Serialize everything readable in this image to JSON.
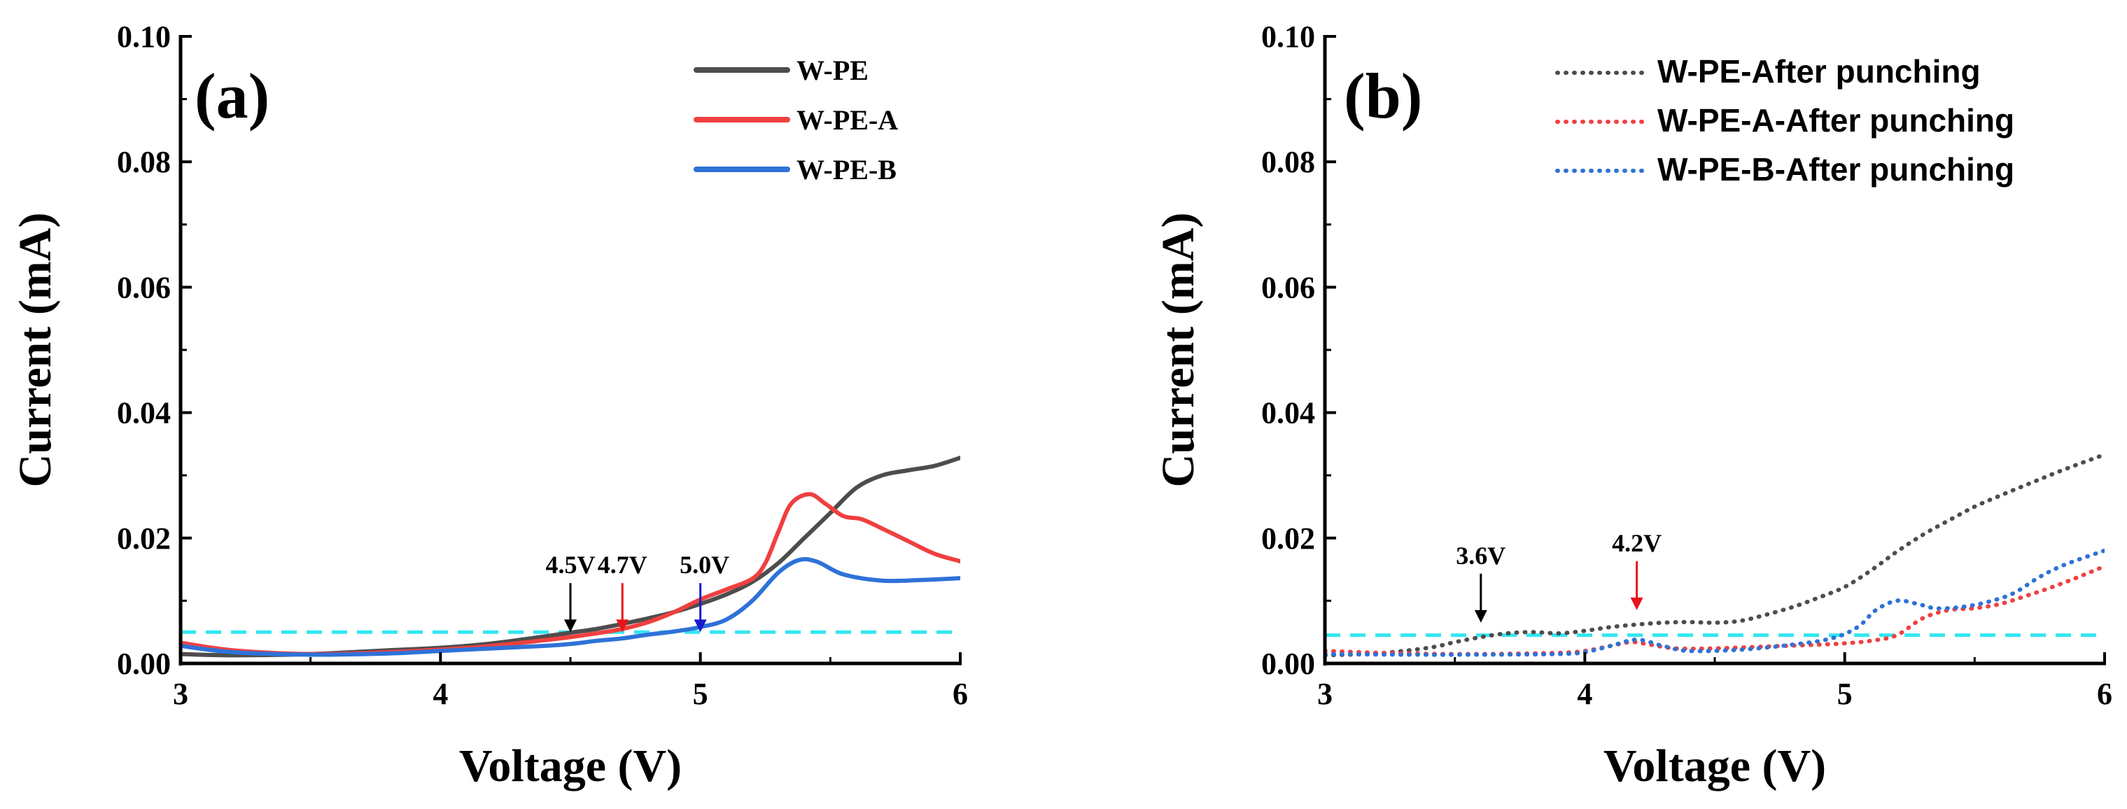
{
  "chart_data": [
    {
      "panel": "(a)",
      "type": "line",
      "xlabel": "Voltage (V)",
      "ylabel": "Current (mA)",
      "xlim": [
        3,
        6
      ],
      "ylim": [
        0,
        0.1
      ],
      "xticks": [
        "3",
        "4",
        "5",
        "6"
      ],
      "yticks": [
        "0.00",
        "0.02",
        "0.04",
        "0.06",
        "0.08",
        "0.10"
      ],
      "series": [
        {
          "name": "W-PE",
          "color": "#4d4d4d",
          "style": "solid",
          "x": [
            3.0,
            3.2,
            3.5,
            3.8,
            4.0,
            4.2,
            4.4,
            4.5,
            4.6,
            4.7,
            4.8,
            4.9,
            5.0,
            5.1,
            5.2,
            5.3,
            5.4,
            5.5,
            5.6,
            5.7,
            5.8,
            5.9,
            6.0
          ],
          "y": [
            0.0015,
            0.0013,
            0.0015,
            0.0021,
            0.0025,
            0.0032,
            0.0043,
            0.0049,
            0.0055,
            0.0063,
            0.0072,
            0.0082,
            0.0095,
            0.011,
            0.013,
            0.016,
            0.02,
            0.024,
            0.028,
            0.03,
            0.0308,
            0.0315,
            0.0328
          ]
        },
        {
          "name": "W-PE-A",
          "color": "#f04040",
          "style": "solid",
          "x": [
            3.0,
            3.2,
            3.5,
            3.8,
            4.0,
            4.2,
            4.4,
            4.5,
            4.6,
            4.7,
            4.8,
            4.9,
            5.0,
            5.1,
            5.2,
            5.25,
            5.3,
            5.35,
            5.42,
            5.48,
            5.55,
            5.62,
            5.7,
            5.8,
            5.9,
            6.0
          ],
          "y": [
            0.0033,
            0.0021,
            0.0015,
            0.0018,
            0.0022,
            0.0028,
            0.0037,
            0.0042,
            0.0048,
            0.0055,
            0.0066,
            0.0082,
            0.0102,
            0.0118,
            0.0135,
            0.016,
            0.021,
            0.0255,
            0.027,
            0.0255,
            0.0235,
            0.023,
            0.0215,
            0.0195,
            0.0175,
            0.0163
          ]
        },
        {
          "name": "W-PE-B",
          "color": "#2e72d8",
          "style": "solid",
          "x": [
            3.0,
            3.2,
            3.5,
            3.8,
            4.0,
            4.2,
            4.4,
            4.5,
            4.6,
            4.7,
            4.8,
            4.9,
            5.0,
            5.1,
            5.2,
            5.3,
            5.38,
            5.45,
            5.55,
            5.7,
            5.85,
            6.0
          ],
          "y": [
            0.0028,
            0.0018,
            0.0014,
            0.0016,
            0.002,
            0.0024,
            0.0028,
            0.0031,
            0.0036,
            0.004,
            0.0046,
            0.0051,
            0.0058,
            0.007,
            0.01,
            0.0145,
            0.0165,
            0.0162,
            0.0142,
            0.0132,
            0.0133,
            0.0136
          ]
        }
      ],
      "threshold_line": {
        "y": 0.005,
        "color": "#33e6f0",
        "style": "dashed"
      },
      "annotations": [
        {
          "label": "4.5V",
          "x": 4.5,
          "y": 0.005,
          "color": "#000000"
        },
        {
          "label": "4.7V",
          "x": 4.7,
          "y": 0.005,
          "color": "#e8141c"
        },
        {
          "label": "5.0V",
          "x": 5.0,
          "y": 0.005,
          "color": "#1a1ad0"
        }
      ],
      "legend": {
        "position": "top-right"
      }
    },
    {
      "panel": "(b)",
      "type": "line",
      "xlabel": "Voltage (V)",
      "ylabel": "Current (mA)",
      "xlim": [
        3,
        6
      ],
      "ylim": [
        0,
        0.1
      ],
      "xticks": [
        "3",
        "4",
        "5",
        "6"
      ],
      "yticks": [
        "0.00",
        "0.02",
        "0.04",
        "0.06",
        "0.08",
        "0.10"
      ],
      "series": [
        {
          "name": "W-PE-After punching",
          "color": "#4d4d4d",
          "style": "dotted",
          "x": [
            3.0,
            3.2,
            3.4,
            3.5,
            3.6,
            3.7,
            3.8,
            3.9,
            4.0,
            4.1,
            4.2,
            4.3,
            4.4,
            4.5,
            4.6,
            4.7,
            4.8,
            4.9,
            5.0,
            5.1,
            5.2,
            5.3,
            5.4,
            5.5,
            5.6,
            5.7,
            5.8,
            5.9,
            6.0
          ],
          "y": [
            0.0013,
            0.0016,
            0.0025,
            0.0034,
            0.0042,
            0.0048,
            0.005,
            0.0048,
            0.0052,
            0.0058,
            0.0062,
            0.0065,
            0.0066,
            0.0065,
            0.0068,
            0.0078,
            0.009,
            0.0105,
            0.0122,
            0.0148,
            0.0178,
            0.0205,
            0.0228,
            0.025,
            0.0268,
            0.0285,
            0.0302,
            0.0318,
            0.0333
          ]
        },
        {
          "name": "W-PE-A-After punching",
          "color": "#f04040",
          "style": "dotted",
          "x": [
            3.0,
            3.3,
            3.6,
            3.9,
            4.0,
            4.1,
            4.18,
            4.25,
            4.35,
            4.5,
            4.7,
            4.9,
            5.0,
            5.1,
            5.2,
            5.3,
            5.4,
            5.5,
            5.6,
            5.7,
            5.8,
            5.9,
            6.0
          ],
          "y": [
            0.002,
            0.0016,
            0.0015,
            0.0017,
            0.002,
            0.0028,
            0.0034,
            0.003,
            0.0024,
            0.0024,
            0.0027,
            0.003,
            0.0032,
            0.0036,
            0.0045,
            0.0072,
            0.0085,
            0.0088,
            0.0095,
            0.0108,
            0.0122,
            0.0138,
            0.0155
          ]
        },
        {
          "name": "W-PE-B-After punching",
          "color": "#2e72d8",
          "style": "dotted",
          "x": [
            3.0,
            3.3,
            3.6,
            3.9,
            4.0,
            4.1,
            4.2,
            4.3,
            4.4,
            4.6,
            4.8,
            4.95,
            5.05,
            5.12,
            5.2,
            5.28,
            5.35,
            5.45,
            5.55,
            5.65,
            5.75,
            5.85,
            6.0
          ],
          "y": [
            0.0015,
            0.0014,
            0.0014,
            0.0015,
            0.0018,
            0.0028,
            0.0038,
            0.0028,
            0.002,
            0.0022,
            0.003,
            0.004,
            0.0058,
            0.0085,
            0.01,
            0.0095,
            0.0088,
            0.009,
            0.0098,
            0.0112,
            0.0138,
            0.0158,
            0.018
          ]
        }
      ],
      "threshold_line": {
        "y": 0.0045,
        "color": "#33e6f0",
        "style": "dashed"
      },
      "annotations": [
        {
          "label": "3.6V",
          "x": 3.6,
          "y": 0.0065,
          "color": "#000000"
        },
        {
          "label": "4.2V",
          "x": 4.2,
          "y": 0.0085,
          "color": "#e8141c"
        }
      ],
      "legend": {
        "position": "top-right"
      }
    }
  ]
}
